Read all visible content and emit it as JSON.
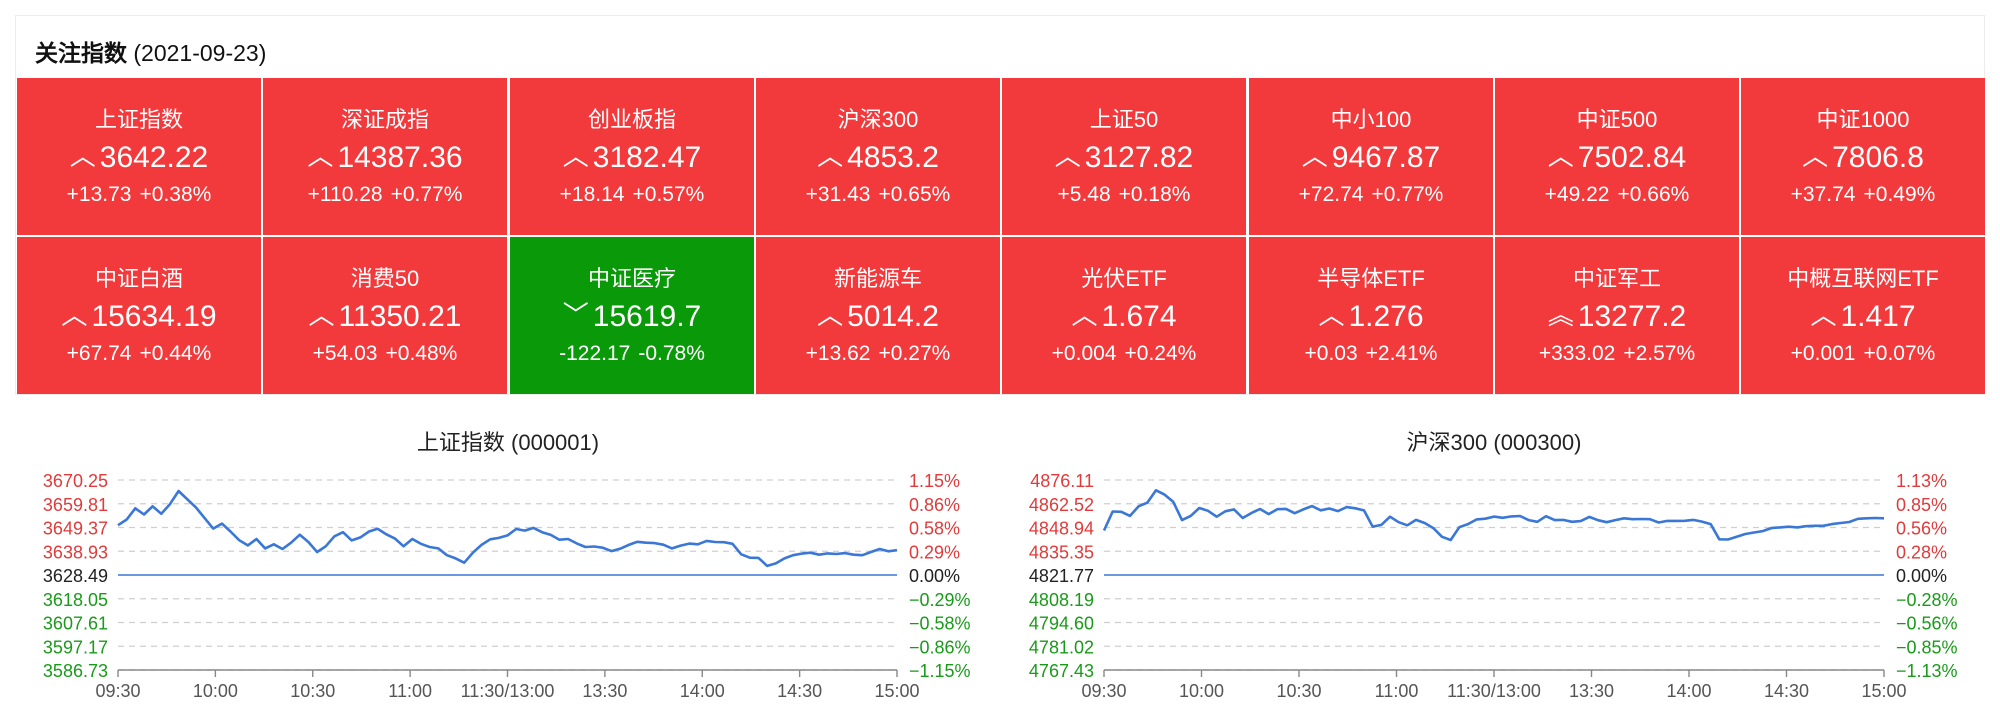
{
  "header": {
    "title": "关注指数",
    "date": "(2021-09-23)"
  },
  "colors": {
    "up": "#f23a3c",
    "down": "#0a9a09",
    "line": "#3a77d6",
    "up_text": "#e03a3a",
    "down_text": "#1a9a1a"
  },
  "tiles": [
    {
      "name": "上证指数",
      "arrow": "up-icon",
      "glyph": "︿",
      "price": "3642.22",
      "change": "+13.73",
      "pct": "+0.38%",
      "state": "up"
    },
    {
      "name": "深证成指",
      "arrow": "up-icon",
      "glyph": "︿",
      "price": "14387.36",
      "change": "+110.28",
      "pct": "+0.77%",
      "state": "up"
    },
    {
      "name": "创业板指",
      "arrow": "up-icon",
      "glyph": "︿",
      "price": "3182.47",
      "change": "+18.14",
      "pct": "+0.57%",
      "state": "up"
    },
    {
      "name": "沪深300",
      "arrow": "up-icon",
      "glyph": "︿",
      "price": "4853.2",
      "change": "+31.43",
      "pct": "+0.65%",
      "state": "up"
    },
    {
      "name": "上证50",
      "arrow": "up-icon",
      "glyph": "︿",
      "price": "3127.82",
      "change": "+5.48",
      "pct": "+0.18%",
      "state": "up"
    },
    {
      "name": "中小100",
      "arrow": "up-icon",
      "glyph": "︿",
      "price": "9467.87",
      "change": "+72.74",
      "pct": "+0.77%",
      "state": "up"
    },
    {
      "name": "中证500",
      "arrow": "up-icon",
      "glyph": "︿",
      "price": "7502.84",
      "change": "+49.22",
      "pct": "+0.66%",
      "state": "up"
    },
    {
      "name": "中证1000",
      "arrow": "up-icon",
      "glyph": "︿",
      "price": "7806.8",
      "change": "+37.74",
      "pct": "+0.49%",
      "state": "up"
    },
    {
      "name": "中证白酒",
      "arrow": "up-icon",
      "glyph": "︿",
      "price": "15634.19",
      "change": "+67.74",
      "pct": "+0.44%",
      "state": "up"
    },
    {
      "name": "消费50",
      "arrow": "up-icon",
      "glyph": "︿",
      "price": "11350.21",
      "change": "+54.03",
      "pct": "+0.48%",
      "state": "up"
    },
    {
      "name": "中证医疗",
      "arrow": "down-icon",
      "glyph": "﹀",
      "price": "15619.7",
      "change": "-122.17",
      "pct": "-0.78%",
      "state": "down"
    },
    {
      "name": "新能源车",
      "arrow": "up-icon",
      "glyph": "︿",
      "price": "5014.2",
      "change": "+13.62",
      "pct": "+0.27%",
      "state": "up"
    },
    {
      "name": "光伏ETF",
      "arrow": "up-icon",
      "glyph": "︿",
      "price": "1.674",
      "change": "+0.004",
      "pct": "+0.24%",
      "state": "up"
    },
    {
      "name": "半导体ETF",
      "arrow": "up-icon",
      "glyph": "︿",
      "price": "1.276",
      "change": "+0.03",
      "pct": "+2.41%",
      "state": "up"
    },
    {
      "name": "中证军工",
      "arrow": "double-up-icon",
      "glyph": "︽",
      "price": "13277.2",
      "change": "+333.02",
      "pct": "+2.57%",
      "state": "up"
    },
    {
      "name": "中概互联网ETF",
      "arrow": "up-icon",
      "glyph": "︿",
      "price": "1.417",
      "change": "+0.001",
      "pct": "+0.07%",
      "state": "up"
    }
  ],
  "chart_data": [
    {
      "type": "line",
      "title": "上证指数 (000001)",
      "base": 3628.49,
      "ylim": [
        3586.73,
        3670.25
      ],
      "y_ticks": [
        "3670.25",
        "3659.81",
        "3649.37",
        "3638.93",
        "3628.49",
        "3618.05",
        "3607.61",
        "3597.17",
        "3586.73"
      ],
      "pct_ticks": [
        "1.15%",
        "0.86%",
        "0.58%",
        "0.29%",
        "0.00%",
        "−0.29%",
        "−0.58%",
        "−0.86%",
        "−1.15%"
      ],
      "x_ticks": [
        "09:30",
        "10:00",
        "10:30",
        "11:00",
        "11:30/13:00",
        "13:30",
        "14:00",
        "14:30",
        "15:00"
      ],
      "grid": true,
      "series": [
        {
          "values": [
            3650.4,
            3652.9,
            3657.8,
            3655.1,
            3658.7,
            3655.4,
            3659.6,
            3665.4,
            3661.8,
            3658.2,
            3653.5,
            3648.9,
            3651.1,
            3647.6,
            3643.8,
            3641.5,
            3644.3,
            3640.2,
            3642.0,
            3639.9,
            3642.7,
            3646.2,
            3643.0,
            3638.6,
            3641.1,
            3645.5,
            3647.3,
            3643.7,
            3645.0,
            3647.6,
            3648.8,
            3646.4,
            3644.5,
            3641.1,
            3644.3,
            3642.2,
            3640.8,
            3640.2,
            3637.2,
            3635.8,
            3633.9,
            3638.3,
            3641.7,
            3644.2,
            3644.8,
            3645.9,
            3648.7,
            3648.0,
            3649.2,
            3647.3,
            3646.1,
            3644.0,
            3644.3,
            3642.4,
            3640.8,
            3641.0,
            3640.5,
            3639.0,
            3640.0,
            3641.7,
            3643.1,
            3642.7,
            3642.5,
            3641.8,
            3640.2,
            3641.4,
            3642.3,
            3642.0,
            3643.5,
            3643.0,
            3642.9,
            3642.2,
            3637.6,
            3636.1,
            3636.0,
            3632.5,
            3633.6,
            3635.8,
            3637.2,
            3637.9,
            3638.3,
            3637.4,
            3638.0,
            3637.7,
            3638.1,
            3637.4,
            3637.2,
            3638.6,
            3639.9,
            3638.9,
            3639.4
          ]
        }
      ]
    },
    {
      "type": "line",
      "title": "沪深300 (000300)",
      "base": 4821.77,
      "ylim": [
        4767.43,
        4876.11
      ],
      "y_ticks": [
        "4876.11",
        "4862.52",
        "4848.94",
        "4835.35",
        "4821.77",
        "4808.19",
        "4794.60",
        "4781.02",
        "4767.43"
      ],
      "pct_ticks": [
        "1.13%",
        "0.85%",
        "0.56%",
        "0.28%",
        "0.00%",
        "−0.28%",
        "−0.56%",
        "−0.85%",
        "−1.13%"
      ],
      "x_ticks": [
        "09:30",
        "10:00",
        "10:30",
        "11:00",
        "11:30/13:00",
        "13:30",
        "14:00",
        "14:30",
        "15:00"
      ],
      "grid": true,
      "series": [
        {
          "values": [
            4847.2,
            4858.1,
            4857.9,
            4855.6,
            4861.1,
            4863.1,
            4870.2,
            4867.7,
            4863.6,
            4853.2,
            4855.6,
            4860.1,
            4858.5,
            4855.1,
            4858.2,
            4859.3,
            4854.4,
            4857.2,
            4859.5,
            4856.6,
            4859.4,
            4859.6,
            4857.1,
            4859.3,
            4861.2,
            4858.8,
            4859.8,
            4858.3,
            4860.6,
            4859.9,
            4858.7,
            4849.4,
            4850.4,
            4855.1,
            4852.0,
            4850.2,
            4853.3,
            4851.5,
            4848.6,
            4843.6,
            4841.8,
            4849.1,
            4850.9,
            4853.6,
            4854.0,
            4855.2,
            4854.5,
            4855.3,
            4855.5,
            4853.2,
            4852.2,
            4855.4,
            4853.2,
            4853.3,
            4852.2,
            4852.6,
            4855.0,
            4853.1,
            4852.0,
            4853.2,
            4854.2,
            4853.7,
            4853.8,
            4853.7,
            4851.8,
            4852.7,
            4852.7,
            4852.8,
            4853.3,
            4852.3,
            4850.9,
            4842.2,
            4842.1,
            4843.6,
            4845.2,
            4846.1,
            4846.9,
            4848.6,
            4849.0,
            4849.4,
            4849.0,
            4849.7,
            4849.9,
            4849.9,
            4850.9,
            4851.5,
            4852.1,
            4853.9,
            4854.2,
            4854.4,
            4854.2
          ]
        }
      ]
    }
  ]
}
